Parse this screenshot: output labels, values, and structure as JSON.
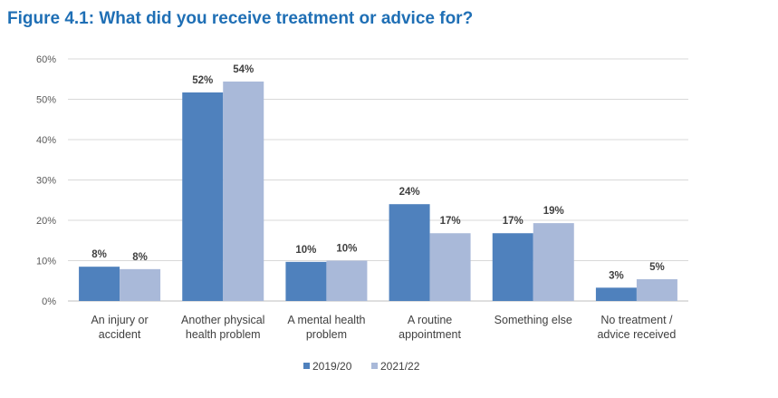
{
  "chart_data": {
    "type": "bar",
    "title": "Figure 4.1: What did you receive treatment or advice for?",
    "categories": [
      [
        "An injury or",
        "accident"
      ],
      [
        "Another physical",
        "health problem"
      ],
      [
        "A mental health",
        "problem"
      ],
      [
        "A routine",
        "appointment"
      ],
      [
        "Something else"
      ],
      [
        "No treatment /",
        "advice received"
      ]
    ],
    "series": [
      {
        "name": "2019/20",
        "color": "#4f81bd",
        "values": [
          8.5,
          51.7,
          9.7,
          24.0,
          16.8,
          3.3
        ],
        "labels": [
          "8%",
          "52%",
          "10%",
          "24%",
          "17%",
          "3%"
        ]
      },
      {
        "name": "2021/22",
        "color": "#a9b9d9",
        "values": [
          7.9,
          54.4,
          10.0,
          16.8,
          19.3,
          5.4
        ],
        "labels": [
          "8%",
          "54%",
          "10%",
          "17%",
          "19%",
          "5%"
        ]
      }
    ],
    "ylim": [
      0,
      60
    ],
    "yticks": [
      0,
      10,
      20,
      30,
      40,
      50,
      60
    ],
    "ytick_labels": [
      "0%",
      "10%",
      "20%",
      "30%",
      "40%",
      "50%",
      "60%"
    ],
    "xlabel": "",
    "ylabel": "",
    "grid": true,
    "legend_position": "bottom"
  }
}
